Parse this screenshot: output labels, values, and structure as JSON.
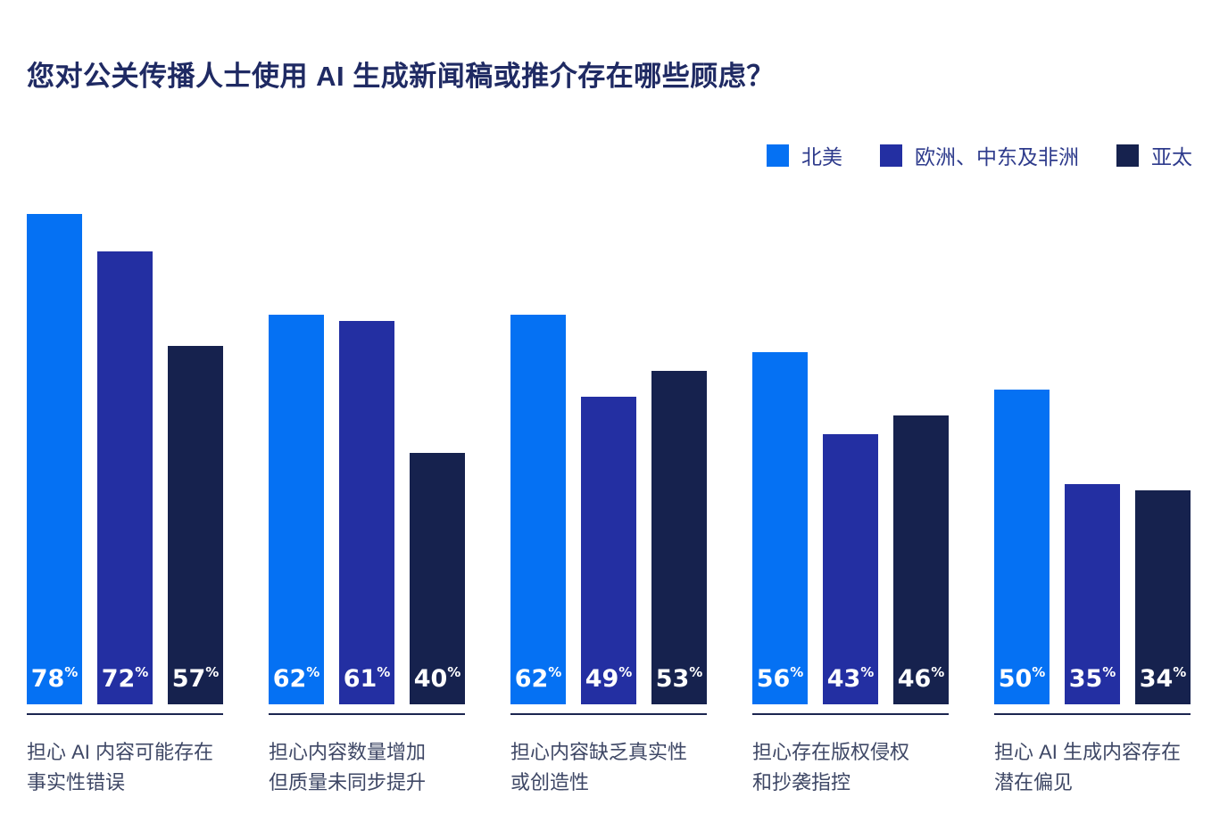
{
  "title": "您对公关传播人士使用 AI 生成新闻稿或推介存在哪些顾虑？",
  "colors": {
    "title_text": "#1F2A63",
    "legend_text": "#2E3B8C",
    "category_text": "#3E4765",
    "baseline": "#1B2550",
    "value_label_text": "#ffffff",
    "background": "#ffffff"
  },
  "legend": [
    {
      "label": "北美",
      "color": "#0571F3"
    },
    {
      "label": "欧洲、中东及非洲",
      "color": "#232FA2"
    },
    {
      "label": "亚太",
      "color": "#16224E"
    }
  ],
  "chart_data": {
    "type": "bar",
    "title": "您对公关传播人士使用 AI 生成新闻稿或推介存在哪些顾虑？",
    "unit": "%",
    "grid": false,
    "legend_position": "top-right",
    "value_labels": "inside bar bottom, white",
    "ylim": [
      0,
      80
    ],
    "categories": [
      "担心 AI 内容可能存在事实性错误",
      "担心内容数量增加但质量未同步提升",
      "担心内容缺乏真实性或创造性",
      "担心存在版权侵权和抄袭指控",
      "担心 AI 生成内容存在潜在偏见"
    ],
    "category_label_lines": [
      [
        "担心 AI 内容可能存在",
        "事实性错误"
      ],
      [
        "担心内容数量增加",
        "但质量未同步提升"
      ],
      [
        "担心内容缺乏真实性",
        "或创造性"
      ],
      [
        "担心存在版权侵权",
        "和抄袭指控"
      ],
      [
        "担心 AI 生成内容存在",
        "潜在偏见"
      ]
    ],
    "series": [
      {
        "name": "北美",
        "color": "#0571F3",
        "values": [
          78,
          62,
          62,
          56,
          50
        ]
      },
      {
        "name": "欧洲、中东及非洲",
        "color": "#232FA2",
        "values": [
          72,
          61,
          49,
          43,
          35
        ]
      },
      {
        "name": "亚太",
        "color": "#16224E",
        "values": [
          57,
          40,
          53,
          46,
          34
        ]
      }
    ]
  }
}
